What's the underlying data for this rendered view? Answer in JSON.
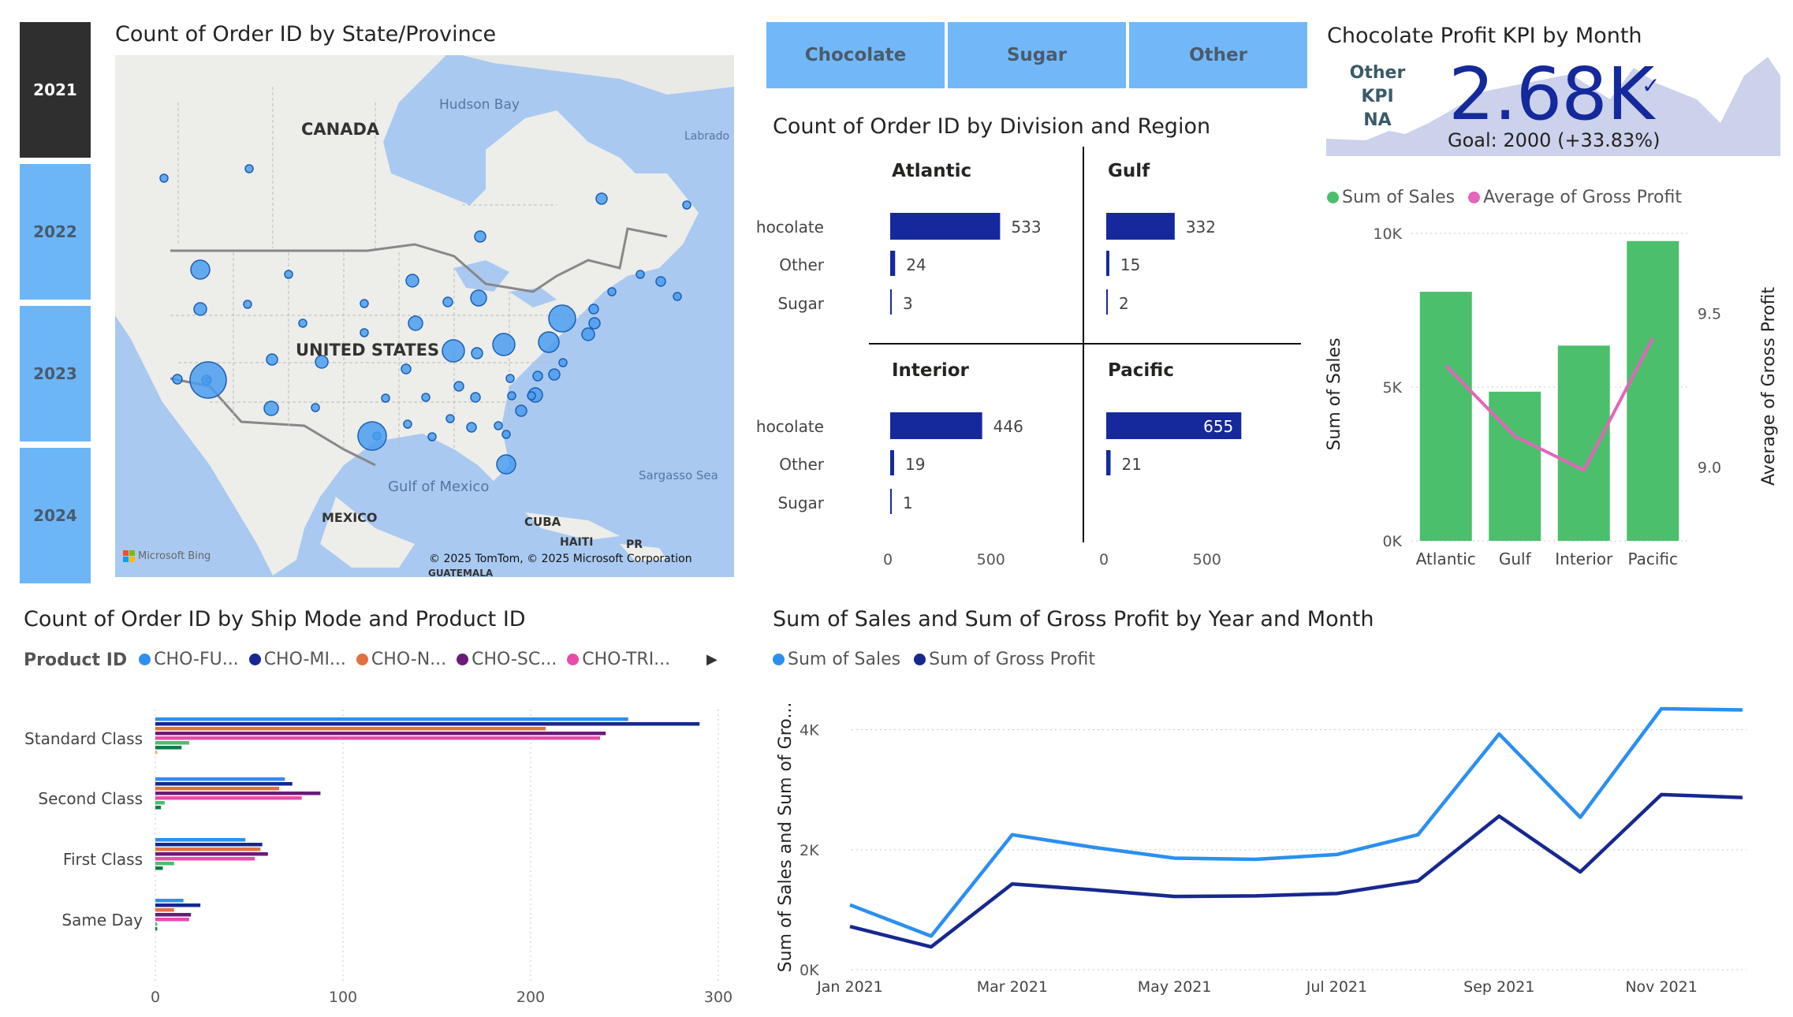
{
  "year_slicer": {
    "years": [
      "2021",
      "2022",
      "2023",
      "2024"
    ],
    "selected": "2021"
  },
  "map": {
    "title": "Count of Order ID by State/Province",
    "labels": {
      "canada": "CANADA",
      "hudson_bay": "Hudson Bay",
      "labrador": "Labrado",
      "united_states": "UNITED STATES",
      "gulf_of_mexico": "Gulf of Mexico",
      "sargasso_sea": "Sargasso Sea",
      "mexico": "MEXICO",
      "cuba": "CUBA",
      "haiti": "HAITI",
      "pr": "PR",
      "guatemala": "GUATEMALA"
    },
    "bing_logo": "Microsoft Bing",
    "copyright": "© 2025 TomTom, © 2025 Microsoft Corporation"
  },
  "category_slicer": {
    "items": [
      "Chocolate",
      "Sugar",
      "Other"
    ]
  },
  "division_chart": {
    "title": "Count of Order ID by Division and Region",
    "axis_ticks": [
      "0",
      "500"
    ],
    "panels": [
      {
        "region": "Atlantic",
        "rows": [
          {
            "label": "Chocolate",
            "value": 533
          },
          {
            "label": "Other",
            "value": 24
          },
          {
            "label": "Sugar",
            "value": 3
          }
        ]
      },
      {
        "region": "Gulf",
        "rows": [
          {
            "label": "Chocolate",
            "value": 332
          },
          {
            "label": "Other",
            "value": 15
          },
          {
            "label": "Sugar",
            "value": 2
          }
        ]
      },
      {
        "region": "Interior",
        "rows": [
          {
            "label": "Chocolate",
            "value": 446
          },
          {
            "label": "Other",
            "value": 19
          },
          {
            "label": "Sugar",
            "value": 1
          }
        ]
      },
      {
        "region": "Pacific",
        "rows": [
          {
            "label": "Chocolate",
            "value": 655
          },
          {
            "label": "Other",
            "value": 21
          },
          {
            "label": "Sugar",
            "value": null
          }
        ]
      }
    ]
  },
  "kpi": {
    "title": "Chocolate Profit KPI by Month",
    "other_kpi_label": "Other KPI",
    "other_kpi_value": "NA",
    "value": "2.68K",
    "goal": "Goal: 2000 (+33.83%)",
    "check": "✓"
  },
  "combo_chart": {
    "legend": [
      "Sum of Sales",
      "Average of Gross Profit"
    ],
    "y_left_label": "Sum of Sales",
    "y_right_label": "Average of Gross Profit",
    "left_ticks": [
      "10K",
      "5K",
      "0K"
    ],
    "right_ticks": [
      "9.5",
      "9.0"
    ]
  },
  "ship_chart": {
    "title": "Count of Order ID by Ship Mode and Product ID",
    "legend_title": "Product ID",
    "legend": [
      "CHO-FU...",
      "CHO-MI...",
      "CHO-N...",
      "CHO-SC...",
      "CHO-TRI..."
    ],
    "x_ticks": [
      "0",
      "100",
      "200",
      "300"
    ]
  },
  "line_chart": {
    "title": "Sum of Sales and Sum of Gross Profit by Year and Month",
    "legend": [
      "Sum of Sales",
      "Sum of Gross Profit"
    ],
    "y_label": "Sum of Sales and Sum of Gro...",
    "y_ticks": [
      "4K",
      "2K",
      "0K"
    ],
    "x_ticks": [
      "Jan 2021",
      "Mar 2021",
      "May 2021",
      "Jul 2021",
      "Sep 2021",
      "Nov 2021"
    ]
  },
  "colors": {
    "slicer": "#72b8f8",
    "slicer_active": "#2f2f2f",
    "navy": "#15299c",
    "green": "#4bbf6b",
    "pink": "#e465b9",
    "line_light": "#2b8ff0",
    "line_dark": "#17288f",
    "bubble": "#4a9cf0"
  },
  "chart_data": [
    {
      "type": "bar",
      "title": "Count of Order ID by Division and Region",
      "categories": [
        "Chocolate",
        "Other",
        "Sugar"
      ],
      "series": [
        {
          "name": "Atlantic",
          "values": [
            533,
            24,
            3
          ]
        },
        {
          "name": "Gulf",
          "values": [
            332,
            15,
            2
          ]
        },
        {
          "name": "Interior",
          "values": [
            446,
            19,
            1
          ]
        },
        {
          "name": "Pacific",
          "values": [
            655,
            21,
            null
          ]
        }
      ],
      "xlim": [
        0,
        650
      ]
    },
    {
      "type": "bar",
      "title": "",
      "categories": [
        "Atlantic",
        "Gulf",
        "Interior",
        "Pacific"
      ],
      "series": [
        {
          "name": "Sum of Sales",
          "axis": "left",
          "values": [
            8100,
            4850,
            6350,
            9750
          ]
        },
        {
          "name": "Average of Gross Profit",
          "axis": "right",
          "type": "line",
          "values": [
            9.33,
            9.1,
            8.99,
            9.42
          ]
        }
      ],
      "ylim_left": [
        0,
        10000
      ],
      "ylim_right": [
        8.76,
        9.76
      ]
    },
    {
      "type": "bar",
      "title": "Count of Order ID by Ship Mode and Product ID",
      "categories": [
        "Standard Class",
        "Second Class",
        "First Class",
        "Same Day"
      ],
      "series": [
        {
          "name": "CHO-FU...",
          "values": [
            252,
            69,
            48,
            15
          ]
        },
        {
          "name": "CHO-MI...",
          "values": [
            290,
            73,
            57,
            24
          ]
        },
        {
          "name": "CHO-N...",
          "values": [
            208,
            66,
            56,
            10
          ]
        },
        {
          "name": "CHO-SC...",
          "values": [
            240,
            88,
            60,
            19
          ]
        },
        {
          "name": "CHO-TRI...",
          "values": [
            237,
            78,
            53,
            18
          ]
        },
        {
          "name": "",
          "values": [
            18,
            5,
            10,
            1
          ]
        },
        {
          "name": "",
          "values": [
            14,
            3,
            4,
            1
          ]
        },
        {
          "name": "",
          "values": [
            1,
            0,
            0,
            0
          ]
        }
      ],
      "xlim": [
        0,
        300
      ]
    },
    {
      "type": "line",
      "title": "Sum of Sales and Sum of Gross Profit by Year and Month",
      "x": [
        "Jan 2021",
        "Feb 2021",
        "Mar 2021",
        "Apr 2021",
        "May 2021",
        "Jun 2021",
        "Jul 2021",
        "Aug 2021",
        "Sep 2021",
        "Oct 2021",
        "Nov 2021",
        "Dec 2021"
      ],
      "series": [
        {
          "name": "Sum of Sales",
          "values": [
            1080,
            560,
            2250,
            2040,
            1860,
            1840,
            1920,
            2250,
            3930,
            2540,
            4350,
            4330
          ]
        },
        {
          "name": "Sum of Gross Profit",
          "values": [
            720,
            380,
            1430,
            1330,
            1220,
            1230,
            1270,
            1480,
            2560,
            1630,
            2920,
            2870
          ]
        }
      ],
      "ylim": [
        0,
        4600
      ]
    }
  ]
}
